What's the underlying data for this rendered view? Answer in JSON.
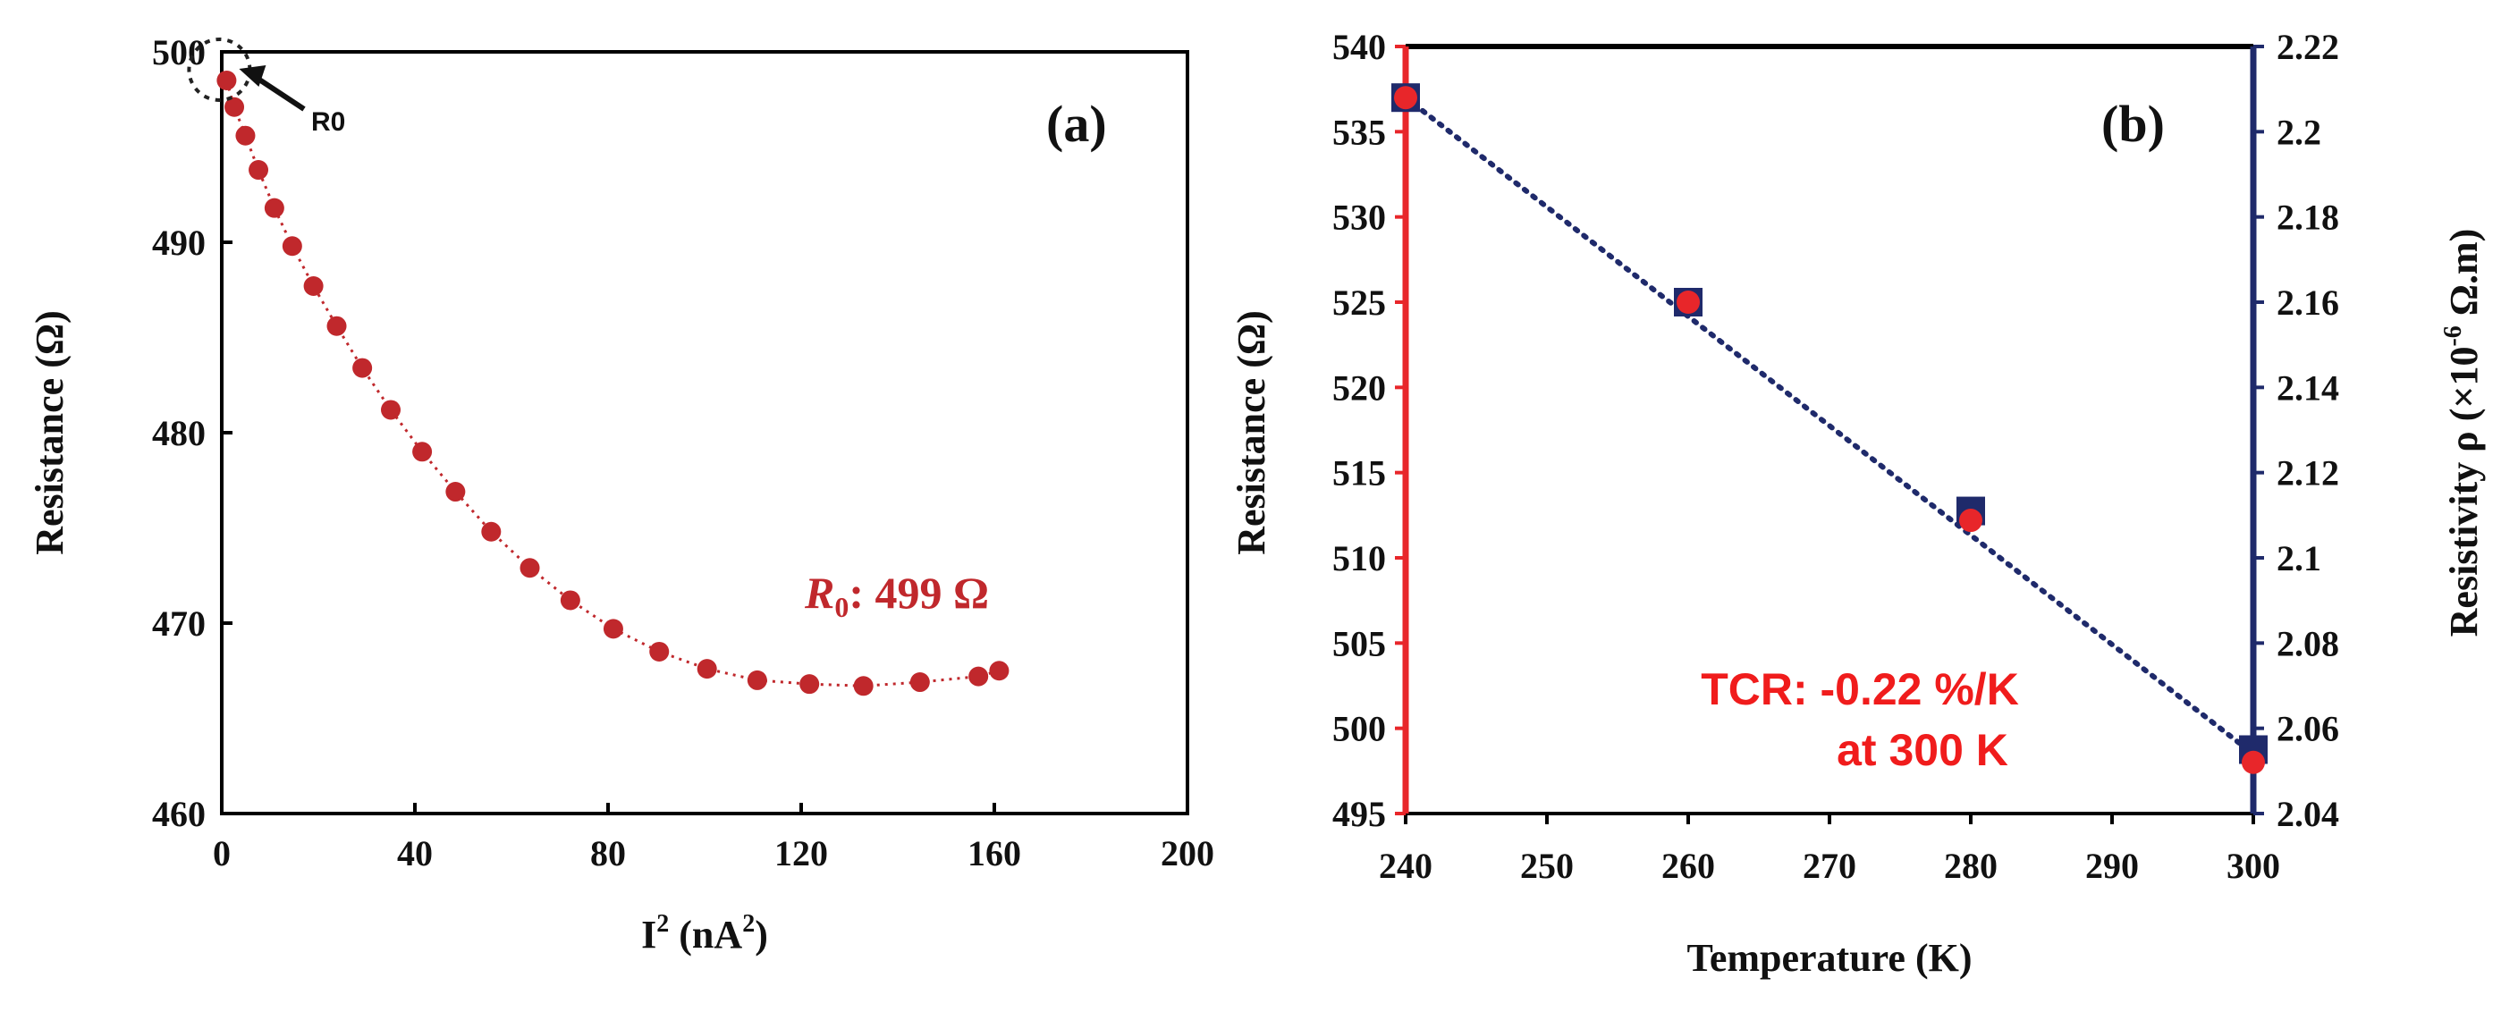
{
  "chart_data": [
    {
      "id": "a",
      "type": "scatter",
      "panel_label": "(a)",
      "xlabel_base": "I",
      "xlabel_sup": "2",
      "xlabel_mid": " (nA",
      "xlabel_sup2": "2",
      "xlabel_end": ")",
      "ylabel": "Resistance (Ω)",
      "xlim": [
        0,
        200
      ],
      "ylim": [
        460,
        500
      ],
      "xticks": [
        0,
        40,
        80,
        120,
        160,
        200
      ],
      "yticks": [
        460,
        470,
        480,
        490,
        500
      ],
      "series": [
        {
          "name": "Resistance",
          "color": "#c0282c",
          "x": [
            1,
            2.6,
            4.9,
            7.6,
            10.9,
            14.6,
            19,
            23.8,
            29.1,
            35,
            41.5,
            48.4,
            55.8,
            63.8,
            72.2,
            81.1,
            90.6,
            100.5,
            110.9,
            121.7,
            132.9,
            144.6,
            156.7,
            161
          ],
          "y": [
            498.5,
            497.1,
            495.6,
            493.8,
            491.8,
            489.8,
            487.7,
            485.6,
            483.4,
            481.2,
            479.0,
            476.9,
            474.8,
            472.9,
            471.2,
            469.7,
            468.5,
            467.6,
            467.0,
            466.8,
            466.7,
            466.9,
            467.2,
            467.5
          ]
        }
      ],
      "annotations": {
        "r0_marker_label": "R0",
        "r0_marker_point": [
          1,
          498.5
        ],
        "r0_symbol": "R",
        "r0_sub": "0",
        "r0_value": ": 499 Ω"
      }
    },
    {
      "id": "b",
      "type": "scatter",
      "panel_label": "(b)",
      "xlabel": "Temperature (K)",
      "ylabel_left": "Resistance (Ω)",
      "ylabel_right_base": "Resistivity ρ (×10",
      "ylabel_right_sup": "-6",
      "ylabel_right_end": " Ω.m)",
      "xlim": [
        240,
        300
      ],
      "ylim_left": [
        495,
        540
      ],
      "ylim_right": [
        2.04,
        2.22
      ],
      "xticks": [
        240,
        250,
        260,
        270,
        280,
        290,
        300
      ],
      "yticks_left": [
        495,
        500,
        505,
        510,
        515,
        520,
        525,
        530,
        535,
        540
      ],
      "yticks_right": [
        2.04,
        2.06,
        2.08,
        2.1,
        2.12,
        2.14,
        2.16,
        2.18,
        2.2,
        2.22
      ],
      "ytick_labels_right": [
        "2.04",
        "2.06",
        "2.08",
        "2.1",
        "2.12",
        "2.14",
        "2.16",
        "2.18",
        "2.2",
        "2.22"
      ],
      "left_axis_color": "#e8262a",
      "right_axis_color": "#1f2a6b",
      "series": [
        {
          "name": "Resistance",
          "axis": "left",
          "marker": "circle",
          "color": "#e8262a",
          "x": [
            240,
            260,
            280,
            300
          ],
          "y": [
            537,
            525,
            512.2,
            498
          ]
        },
        {
          "name": "Resistivity",
          "axis": "right",
          "marker": "square",
          "color": "#1f2a6b",
          "x": [
            240,
            260,
            280,
            300
          ],
          "y": [
            2.208,
            2.16,
            2.111,
            2.055
          ]
        }
      ],
      "trendline": {
        "x": [
          240,
          300
        ],
        "y_left": [
          537,
          498.5
        ],
        "style": "dotted",
        "color": "#1f2a6b"
      },
      "annotations": {
        "tcr_line1": "TCR: -0.22 %/K",
        "tcr_line2": "at 300 K"
      }
    }
  ]
}
